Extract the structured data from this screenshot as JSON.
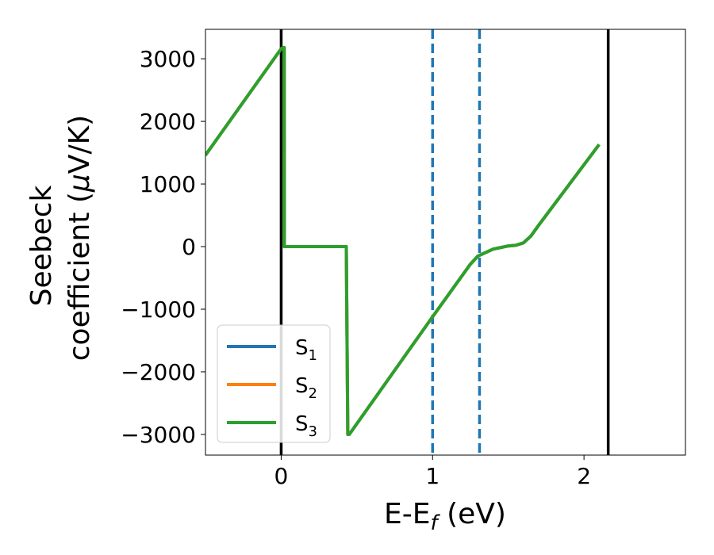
{
  "chart_data": {
    "type": "line",
    "xlabel": "E-E_f (eV)",
    "xlabel_main": "E-E",
    "xlabel_sub": "f",
    "xlabel_unit": " (eV)",
    "ylabel_line1": "Seebeck",
    "ylabel_line2_a": "coefficient  (",
    "ylabel_line2_mu": "μ",
    "ylabel_line2_b": "V/K)",
    "xlim": [
      -0.5,
      2.67
    ],
    "ylim": [
      -3330,
      3470
    ],
    "x_ticks": [
      {
        "value": 0,
        "label": "0"
      },
      {
        "value": 1,
        "label": "1"
      },
      {
        "value": 2,
        "label": "2"
      }
    ],
    "y_ticks": [
      {
        "value": 3000,
        "label": "3000"
      },
      {
        "value": 2000,
        "label": "2000"
      },
      {
        "value": 1000,
        "label": "1000"
      },
      {
        "value": 0,
        "label": "0"
      },
      {
        "value": -1000,
        "label": "−1000"
      },
      {
        "value": -2000,
        "label": "−2000"
      },
      {
        "value": -3000,
        "label": "−3000"
      }
    ],
    "vertical_lines": [
      {
        "x": 0.0,
        "color": "#000000",
        "style": "solid"
      },
      {
        "x": 2.16,
        "color": "#000000",
        "style": "solid"
      },
      {
        "x": 1.0,
        "color": "#1f77b4",
        "style": "dashed"
      },
      {
        "x": 1.31,
        "color": "#1f77b4",
        "style": "dashed"
      }
    ],
    "series": [
      {
        "name": "S1",
        "label_main": "S",
        "label_sub": "1",
        "color": "#1f77b4",
        "x": [
          -0.5,
          0.0,
          0.02,
          0.021,
          0.43,
          0.44,
          0.45,
          1.0,
          1.25,
          1.3,
          1.4,
          1.5,
          1.55,
          1.6,
          1.65,
          1.7,
          2.1
        ],
        "y": [
          1460,
          3160,
          3180,
          0,
          0,
          -3000,
          -3000,
          -1120,
          -280,
          -150,
          -40,
          10,
          20,
          60,
          170,
          340,
          1630
        ]
      },
      {
        "name": "S2",
        "label_main": "S",
        "label_sub": "2",
        "color": "#ff7f0e",
        "x": [
          -0.5,
          0.0,
          0.02,
          0.021,
          0.43,
          0.44,
          0.45,
          1.0,
          1.25,
          1.3,
          1.4,
          1.5,
          1.55,
          1.6,
          1.65,
          1.7,
          2.1
        ],
        "y": [
          1460,
          3160,
          3180,
          0,
          0,
          -3000,
          -3000,
          -1120,
          -280,
          -150,
          -40,
          10,
          20,
          60,
          170,
          340,
          1630
        ]
      },
      {
        "name": "S3",
        "label_main": "S",
        "label_sub": "3",
        "color": "#2ca02c",
        "x": [
          -0.5,
          0.0,
          0.02,
          0.021,
          0.43,
          0.44,
          0.45,
          1.0,
          1.25,
          1.3,
          1.4,
          1.5,
          1.55,
          1.6,
          1.65,
          1.7,
          2.1
        ],
        "y": [
          1460,
          3160,
          3180,
          0,
          0,
          -3000,
          -3000,
          -1120,
          -280,
          -150,
          -40,
          10,
          20,
          60,
          170,
          340,
          1630
        ]
      }
    ],
    "legend_position": "lower-left",
    "grid": false
  }
}
